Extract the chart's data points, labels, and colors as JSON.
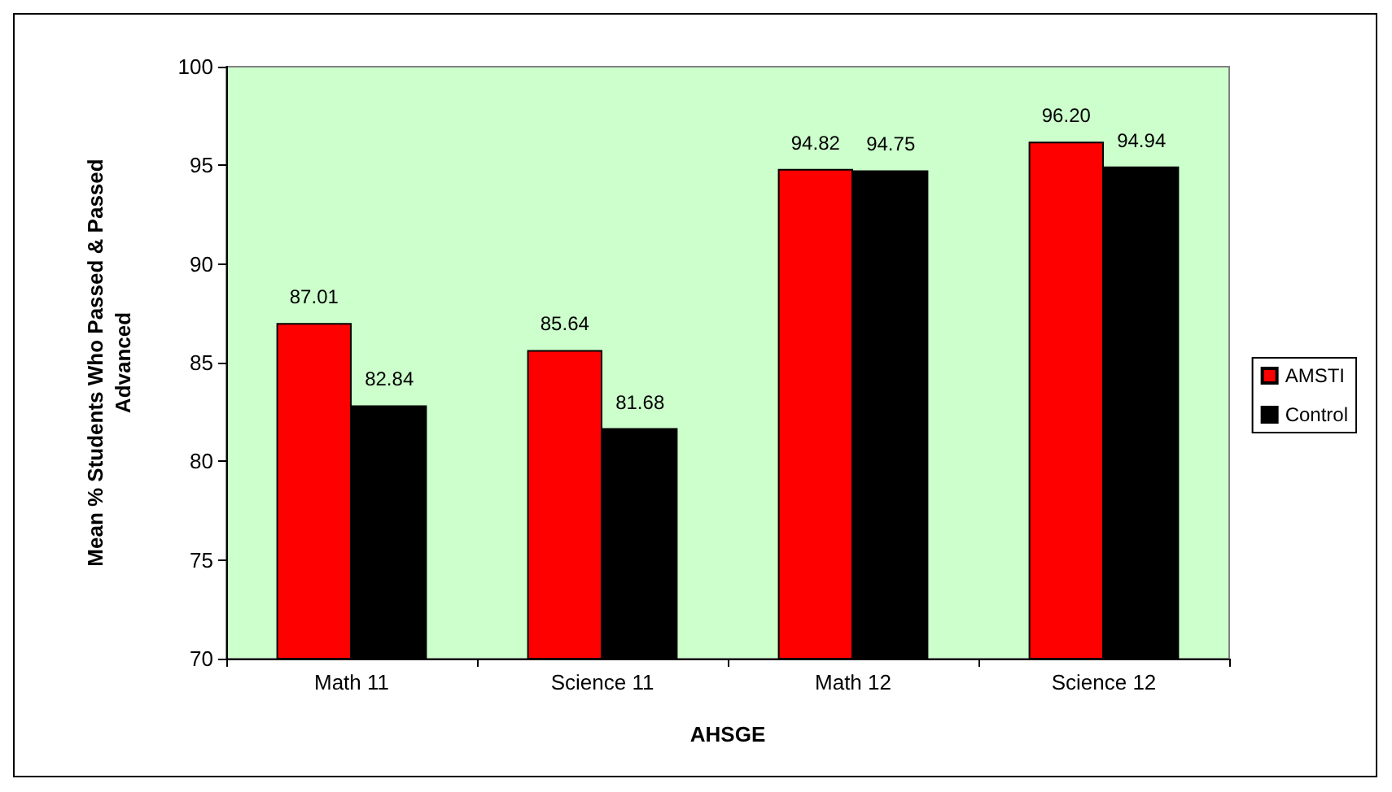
{
  "chart_data": {
    "type": "bar",
    "xlabel": "AHSGE",
    "ylabel": "Mean % Students Who Passed & Passed\nAdvanced",
    "categories": [
      "Math 11",
      "Science 11",
      "Math 12",
      "Science 12"
    ],
    "series": [
      {
        "name": "AMSTI",
        "color": "#ff0000",
        "values": [
          87.01,
          85.64,
          94.82,
          96.2
        ],
        "value_labels": [
          "87.01",
          "85.64",
          "94.82",
          "96.20"
        ]
      },
      {
        "name": "Control",
        "color": "#000000",
        "values": [
          82.84,
          81.68,
          94.75,
          94.94
        ],
        "value_labels": [
          "82.84",
          "81.68",
          "94.75",
          "94.94"
        ]
      }
    ],
    "ylim": [
      70,
      100
    ],
    "yticks": [
      70,
      75,
      80,
      85,
      90,
      95,
      100
    ],
    "grid": false,
    "legend": "right"
  }
}
